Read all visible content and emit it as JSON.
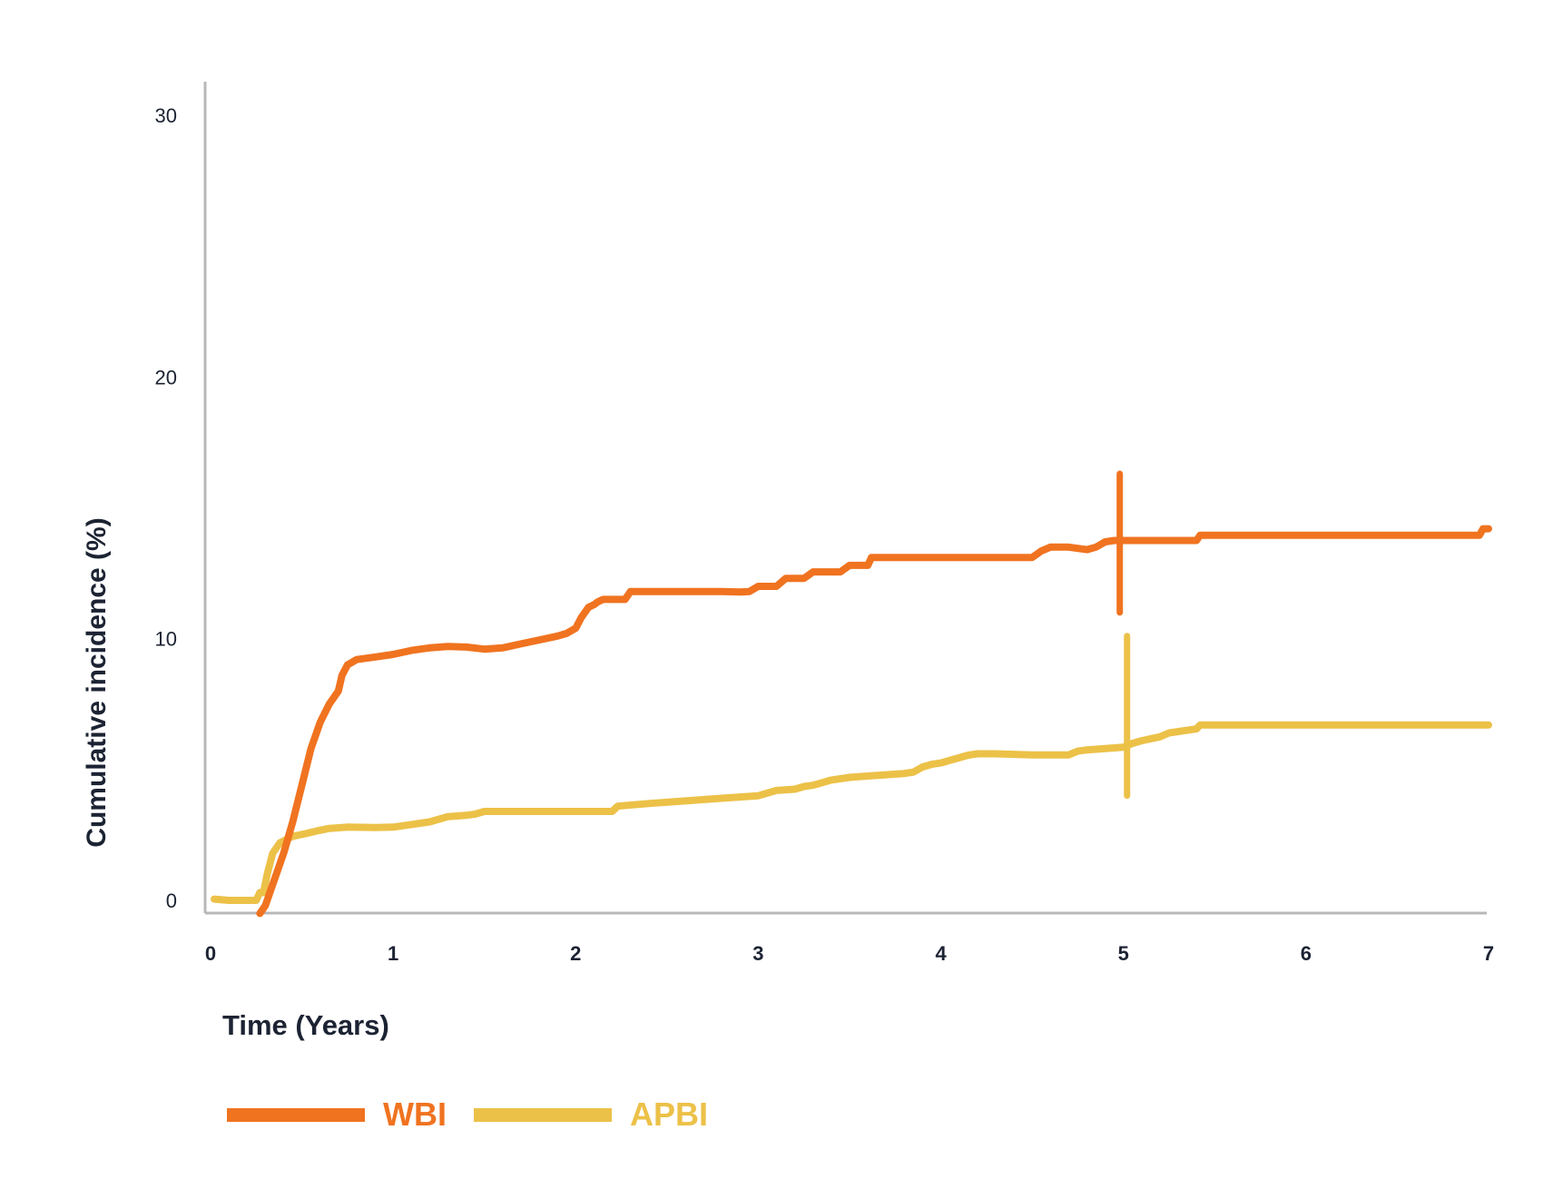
{
  "chart_data": {
    "type": "line",
    "title": "",
    "xlabel": "Time (Years)",
    "ylabel": "Cumulative incidence (%)",
    "xlim": [
      0,
      7
    ],
    "ylim": [
      0,
      30
    ],
    "x_ticks": [
      "0",
      "1",
      "2",
      "3",
      "4",
      "5",
      "6",
      "7"
    ],
    "y_ticks": [
      "0",
      "10",
      "20",
      "30"
    ],
    "grid": false,
    "legend_position": "bottom-left",
    "series": [
      {
        "name": "WBI",
        "color": "#f07320",
        "points": [
          [
            0.27,
            -0.5
          ],
          [
            0.3,
            -0.2
          ],
          [
            0.35,
            0.8
          ],
          [
            0.4,
            1.8
          ],
          [
            0.45,
            3.0
          ],
          [
            0.5,
            4.4
          ],
          [
            0.55,
            5.8
          ],
          [
            0.6,
            6.8
          ],
          [
            0.65,
            7.5
          ],
          [
            0.7,
            8.0
          ],
          [
            0.72,
            8.6
          ],
          [
            0.75,
            9.0
          ],
          [
            0.8,
            9.2
          ],
          [
            0.9,
            9.3
          ],
          [
            1.0,
            9.4
          ],
          [
            1.1,
            9.55
          ],
          [
            1.2,
            9.65
          ],
          [
            1.3,
            9.7
          ],
          [
            1.4,
            9.68
          ],
          [
            1.5,
            9.6
          ],
          [
            1.6,
            9.65
          ],
          [
            1.7,
            9.8
          ],
          [
            1.8,
            9.95
          ],
          [
            1.9,
            10.1
          ],
          [
            1.95,
            10.2
          ],
          [
            2.0,
            10.4
          ],
          [
            2.03,
            10.8
          ],
          [
            2.07,
            11.2
          ],
          [
            2.1,
            11.3
          ],
          [
            2.12,
            11.4
          ],
          [
            2.15,
            11.5
          ],
          [
            2.2,
            11.5
          ],
          [
            2.27,
            11.5
          ],
          [
            2.3,
            11.8
          ],
          [
            2.4,
            11.8
          ],
          [
            2.6,
            11.8
          ],
          [
            2.8,
            11.8
          ],
          [
            2.9,
            11.78
          ],
          [
            2.95,
            11.8
          ],
          [
            3.0,
            12.0
          ],
          [
            3.1,
            12.0
          ],
          [
            3.15,
            12.3
          ],
          [
            3.25,
            12.3
          ],
          [
            3.3,
            12.55
          ],
          [
            3.45,
            12.55
          ],
          [
            3.5,
            12.8
          ],
          [
            3.6,
            12.8
          ],
          [
            3.62,
            13.1
          ],
          [
            3.8,
            13.1
          ],
          [
            4.0,
            13.1
          ],
          [
            4.2,
            13.1
          ],
          [
            4.4,
            13.1
          ],
          [
            4.5,
            13.1
          ],
          [
            4.55,
            13.35
          ],
          [
            4.6,
            13.5
          ],
          [
            4.7,
            13.5
          ],
          [
            4.8,
            13.4
          ],
          [
            4.85,
            13.5
          ],
          [
            4.9,
            13.7
          ],
          [
            4.95,
            13.75
          ],
          [
            5.0,
            13.75
          ],
          [
            5.2,
            13.75
          ],
          [
            5.4,
            13.75
          ],
          [
            5.42,
            13.95
          ],
          [
            5.6,
            13.95
          ],
          [
            5.8,
            13.95
          ],
          [
            6.0,
            13.95
          ],
          [
            6.2,
            13.95
          ],
          [
            6.4,
            13.95
          ],
          [
            6.6,
            13.95
          ],
          [
            6.8,
            13.95
          ],
          [
            6.95,
            13.95
          ],
          [
            6.97,
            14.2
          ],
          [
            7.0,
            14.2
          ]
        ],
        "censor_x": 4.98,
        "censor_range": [
          11.0,
          16.3
        ]
      },
      {
        "name": "APBI",
        "color": "#ecc148",
        "points": [
          [
            0.02,
            0.05
          ],
          [
            0.1,
            0.0
          ],
          [
            0.2,
            0.0
          ],
          [
            0.25,
            0.0
          ],
          [
            0.27,
            0.3
          ],
          [
            0.29,
            0.3
          ],
          [
            0.31,
            1.0
          ],
          [
            0.34,
            1.8
          ],
          [
            0.38,
            2.2
          ],
          [
            0.45,
            2.45
          ],
          [
            0.52,
            2.55
          ],
          [
            0.58,
            2.65
          ],
          [
            0.65,
            2.75
          ],
          [
            0.75,
            2.8
          ],
          [
            0.9,
            2.78
          ],
          [
            1.0,
            2.8
          ],
          [
            1.1,
            2.9
          ],
          [
            1.2,
            3.0
          ],
          [
            1.25,
            3.1
          ],
          [
            1.3,
            3.2
          ],
          [
            1.4,
            3.25
          ],
          [
            1.45,
            3.3
          ],
          [
            1.5,
            3.4
          ],
          [
            1.7,
            3.4
          ],
          [
            1.9,
            3.4
          ],
          [
            2.1,
            3.4
          ],
          [
            2.2,
            3.4
          ],
          [
            2.23,
            3.6
          ],
          [
            2.4,
            3.7
          ],
          [
            2.6,
            3.8
          ],
          [
            2.8,
            3.9
          ],
          [
            3.0,
            4.0
          ],
          [
            3.1,
            4.2
          ],
          [
            3.2,
            4.25
          ],
          [
            3.25,
            4.35
          ],
          [
            3.3,
            4.4
          ],
          [
            3.35,
            4.5
          ],
          [
            3.4,
            4.6
          ],
          [
            3.5,
            4.7
          ],
          [
            3.6,
            4.75
          ],
          [
            3.7,
            4.8
          ],
          [
            3.8,
            4.85
          ],
          [
            3.85,
            4.9
          ],
          [
            3.9,
            5.1
          ],
          [
            3.95,
            5.2
          ],
          [
            4.0,
            5.25
          ],
          [
            4.05,
            5.35
          ],
          [
            4.1,
            5.45
          ],
          [
            4.15,
            5.55
          ],
          [
            4.2,
            5.6
          ],
          [
            4.3,
            5.6
          ],
          [
            4.4,
            5.58
          ],
          [
            4.5,
            5.56
          ],
          [
            4.6,
            5.56
          ],
          [
            4.7,
            5.56
          ],
          [
            4.75,
            5.7
          ],
          [
            4.8,
            5.75
          ],
          [
            4.9,
            5.8
          ],
          [
            5.0,
            5.85
          ],
          [
            5.05,
            6.0
          ],
          [
            5.1,
            6.1
          ],
          [
            5.2,
            6.25
          ],
          [
            5.25,
            6.4
          ],
          [
            5.4,
            6.55
          ],
          [
            5.42,
            6.7
          ],
          [
            5.5,
            6.7
          ],
          [
            5.6,
            6.7
          ],
          [
            5.8,
            6.7
          ],
          [
            6.0,
            6.7
          ],
          [
            6.2,
            6.7
          ],
          [
            6.4,
            6.7
          ],
          [
            6.6,
            6.7
          ],
          [
            6.8,
            6.7
          ],
          [
            7.0,
            6.7
          ]
        ],
        "censor_x": 5.02,
        "censor_range": [
          4.0,
          10.1
        ]
      }
    ]
  }
}
